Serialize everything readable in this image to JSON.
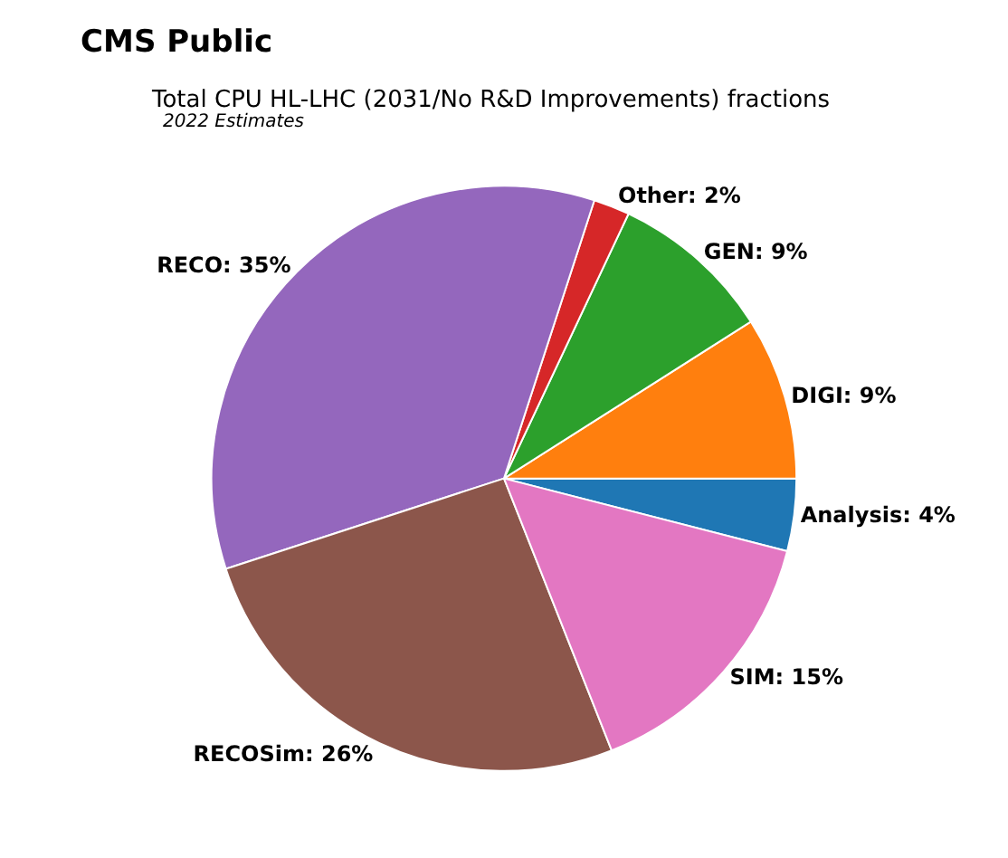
{
  "chart_data": {
    "type": "pie",
    "title": "CMS Public",
    "subtitle": "Total CPU HL-LHC (2031/No R&D Improvements) fractions",
    "annotations": [
      "2022 Estimates"
    ],
    "categories": [
      "Analysis",
      "DIGI",
      "GEN",
      "Other",
      "RECO",
      "RECOSim",
      "SIM"
    ],
    "values": [
      4,
      9,
      9,
      2,
      35,
      26,
      15
    ],
    "value_labels": [
      "4%",
      "9%",
      "9%",
      "2%",
      "35%",
      "26%",
      "15%"
    ],
    "colors": [
      "#1f77b4",
      "#ff7f0e",
      "#2ca02c",
      "#d62728",
      "#9467bd",
      "#8c564b",
      "#e377c2"
    ],
    "legend": false
  }
}
